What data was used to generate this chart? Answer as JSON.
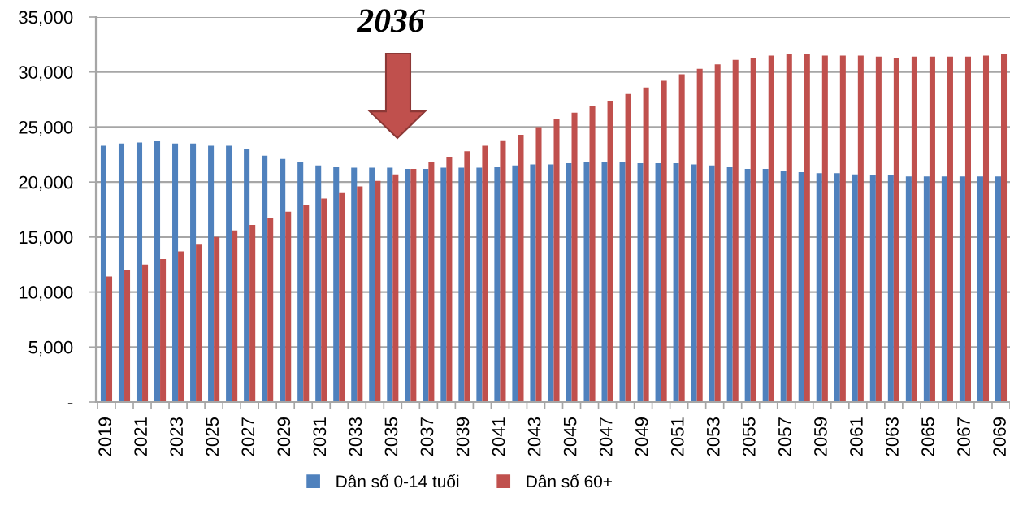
{
  "chart_data": {
    "type": "bar",
    "categories": [
      "2019",
      null,
      "2021",
      null,
      "2023",
      null,
      "2025",
      null,
      "2027",
      null,
      "2029",
      null,
      "2031",
      null,
      "2033",
      null,
      "2035",
      null,
      "2037",
      null,
      "2039",
      null,
      "2041",
      null,
      "2043",
      null,
      "2045",
      null,
      "2047",
      null,
      "2049",
      null,
      "2051",
      null,
      "2053",
      null,
      "2055",
      null,
      "2057",
      null,
      "2059",
      null,
      "2061",
      null,
      "2063",
      null,
      "2065",
      null,
      "2067",
      null,
      "2069"
    ],
    "series": [
      {
        "name": "Dân số 0-14 tuổi",
        "color": "#4f81bd",
        "values": [
          23300,
          23500,
          23600,
          23700,
          23500,
          23500,
          23300,
          23300,
          23000,
          22400,
          22100,
          21800,
          21500,
          21400,
          21300,
          21300,
          21300,
          21200,
          21200,
          21300,
          21300,
          21300,
          21400,
          21500,
          21600,
          21600,
          21700,
          21800,
          21800,
          21800,
          21700,
          21700,
          21700,
          21600,
          21500,
          21400,
          21200,
          21200,
          21000,
          20900,
          20800,
          20800,
          20700,
          20600,
          20600,
          20500,
          20500,
          20500,
          20500,
          20500,
          20500
        ]
      },
      {
        "name": "Dân số 60+",
        "color": "#c0504d",
        "values": [
          11400,
          12000,
          12500,
          13000,
          13700,
          14300,
          15000,
          15600,
          16100,
          16700,
          17300,
          17900,
          18500,
          19000,
          19600,
          20100,
          20700,
          21200,
          21800,
          22300,
          22800,
          23300,
          23800,
          24300,
          25000,
          25700,
          26300,
          26900,
          27400,
          28000,
          28600,
          29200,
          29800,
          30300,
          30700,
          31100,
          31300,
          31500,
          31600,
          31600,
          31500,
          31500,
          31500,
          31400,
          31300,
          31400,
          31400,
          31400,
          31400,
          31500,
          31600
        ]
      }
    ],
    "ylim": [
      0,
      35000
    ],
    "yticks": [
      {
        "value": 0,
        "label": "-"
      },
      {
        "value": 5000,
        "label": "5,000"
      },
      {
        "value": 10000,
        "label": "10,000"
      },
      {
        "value": 15000,
        "label": "15,000"
      },
      {
        "value": 20000,
        "label": "20,000"
      },
      {
        "value": 25000,
        "label": "25,000"
      },
      {
        "value": 30000,
        "label": "30,000"
      },
      {
        "value": 35000,
        "label": "35,000"
      }
    ],
    "grid": "y",
    "legend": "bottom",
    "annotations": [
      "2036"
    ]
  }
}
